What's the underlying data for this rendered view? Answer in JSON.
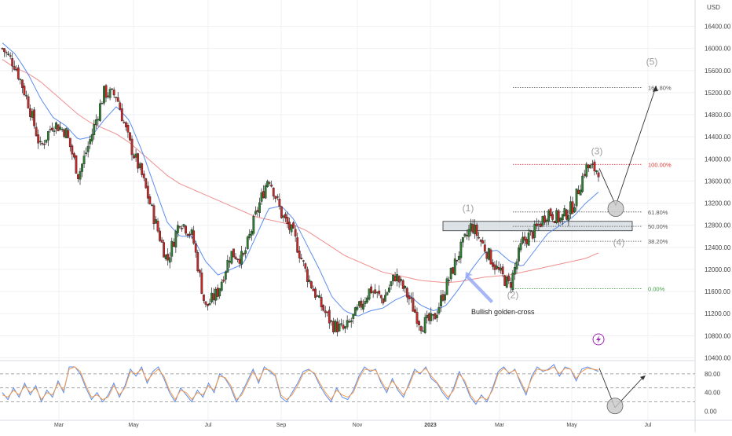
{
  "chart_data": [
    {
      "type": "candlestick",
      "currency": "USD",
      "y_ticks": [
        16400,
        16000,
        15600,
        15200,
        14800,
        14400,
        14000,
        13600,
        13200,
        12800,
        12400,
        12000,
        11600,
        11200,
        10800,
        10400
      ],
      "ylim": [
        10250,
        16550
      ],
      "x_ticks": [
        "Mar",
        "May",
        "Jul",
        "Sep",
        "Nov",
        "2023",
        "Mar",
        "May",
        "Jul"
      ],
      "grid": true,
      "colors": {
        "up": "#2e7d32",
        "down": "#c62828",
        "ma_fast": "#5b8def",
        "ma_slow": "#ef8f8f",
        "arrow": "#333333",
        "fib_top": "#e53935",
        "fib_zero": "#43a047",
        "label_gray": "#9e9e9e",
        "annotation": "#90a4f5",
        "zone": "#cfd6dc"
      },
      "close_trace": [
        [
          "Jan",
          16000
        ],
        [
          "Jan",
          15700
        ],
        [
          "Feb",
          15050
        ],
        [
          "Feb",
          14200
        ],
        [
          "Feb",
          14650
        ],
        [
          "Mar",
          14500
        ],
        [
          "Mar",
          13700
        ],
        [
          "Mar",
          14400
        ],
        [
          "Apr",
          15200
        ],
        [
          "Apr",
          15150
        ],
        [
          "Apr",
          14300
        ],
        [
          "May",
          13700
        ],
        [
          "May",
          12900
        ],
        [
          "May",
          12150
        ],
        [
          "Jun",
          12900
        ],
        [
          "Jun",
          12600
        ],
        [
          "Jun",
          11300
        ],
        [
          "Jul",
          11600
        ],
        [
          "Jul",
          12300
        ],
        [
          "Jul",
          12200
        ],
        [
          "Aug",
          13000
        ],
        [
          "Aug",
          13700
        ],
        [
          "Aug",
          13000
        ],
        [
          "Sep",
          12600
        ],
        [
          "Sep",
          11900
        ],
        [
          "Oct",
          11400
        ],
        [
          "Oct",
          11000
        ],
        [
          "Oct",
          10900
        ],
        [
          "Nov",
          11250
        ],
        [
          "Nov",
          11650
        ],
        [
          "Nov",
          11450
        ],
        [
          "Dec",
          11900
        ],
        [
          "Dec",
          11500
        ],
        [
          "Dec",
          11000
        ],
        [
          "Jan",
          11100
        ],
        [
          "Jan",
          11700
        ],
        [
          "Jan",
          12300
        ],
        [
          "Feb",
          12800
        ],
        [
          "Feb",
          12400
        ],
        [
          "Feb",
          12000
        ],
        [
          "Mar",
          11700
        ],
        [
          "Mar",
          12500
        ],
        [
          "Apr",
          12700
        ],
        [
          "Apr",
          13050
        ],
        [
          "Apr",
          12900
        ],
        [
          "May",
          13150
        ],
        [
          "May",
          13850
        ],
        [
          "May",
          13800
        ]
      ],
      "ma_fast_trace": [
        16100,
        15900,
        15550,
        15100,
        14750,
        14600,
        14350,
        14400,
        14700,
        14950,
        14700,
        14150,
        13500,
        12850,
        12600,
        12600,
        12150,
        11900,
        12000,
        12100,
        12600,
        13100,
        13150,
        12900,
        12450,
        12000,
        11500,
        11250,
        11150,
        11250,
        11300,
        11450,
        11550,
        11350,
        11250,
        11350,
        11650,
        12000,
        12300,
        12350,
        12150,
        12050,
        12350,
        12650,
        12800,
        12950,
        13200,
        13400
      ],
      "ma_slow_trace": [
        15800,
        15650,
        15550,
        15400,
        15200,
        15000,
        14800,
        14650,
        14550,
        14450,
        14300,
        14100,
        13900,
        13700,
        13550,
        13450,
        13350,
        13250,
        13150,
        13050,
        12950,
        12900,
        12850,
        12800,
        12700,
        12550,
        12400,
        12250,
        12150,
        12050,
        11950,
        11900,
        11850,
        11800,
        11780,
        11760,
        11780,
        11820,
        11860,
        11880,
        11900,
        11950,
        12000,
        12050,
        12100,
        12150,
        12200,
        12300
      ],
      "fib_levels": [
        {
          "label": "161.80%",
          "value": 15290
        },
        {
          "label": "100.00%",
          "value": 13900
        },
        {
          "label": "61.80%",
          "value": 13040
        },
        {
          "label": "50.00%",
          "value": 12780
        },
        {
          "label": "38.20%",
          "value": 12510
        },
        {
          "label": "0.00%",
          "value": 11650
        }
      ],
      "wave_labels": [
        {
          "label": "(1)",
          "value": 13050
        },
        {
          "label": "(2)",
          "value": 11480
        },
        {
          "label": "(3)",
          "value": 14080
        },
        {
          "label": "(4)",
          "value": 12430
        },
        {
          "label": "(5)",
          "value": 15700
        }
      ],
      "support_zone": [
        12700,
        12870
      ],
      "projection_path": [
        13830,
        13100,
        15300
      ],
      "annotation": "Bullish golden-cross"
    },
    {
      "type": "line",
      "indicator_badge_icon": "lightning-icon",
      "y_ticks": [
        80.0,
        40.0,
        0.0
      ],
      "ylim": [
        -6,
        120
      ],
      "bands": [
        80,
        50,
        20
      ],
      "series": [
        {
          "color": "#5b8def",
          "values": [
            40,
            25,
            50,
            30,
            60,
            35,
            55,
            20,
            45,
            30,
            65,
            40,
            95,
            95,
            80,
            50,
            25,
            40,
            20,
            35,
            60,
            30,
            55,
            90,
            75,
            95,
            60,
            85,
            95,
            70,
            40,
            20,
            50,
            35,
            20,
            45,
            30,
            60,
            40,
            80,
            70,
            50,
            20,
            40,
            65,
            90,
            60,
            95,
            85,
            75,
            30,
            20,
            40,
            60,
            85,
            90,
            80,
            55,
            35,
            20,
            50,
            30,
            25,
            45,
            75,
            95,
            85,
            90,
            60,
            40,
            70,
            45,
            30,
            60,
            90,
            80,
            95,
            70,
            60,
            40,
            25,
            50,
            85,
            60,
            30,
            15,
            35,
            20,
            50,
            85,
            95,
            80,
            90,
            60,
            35,
            75,
            95,
            85,
            90,
            100,
            75,
            95,
            90,
            65,
            90,
            95,
            90,
            85
          ]
        },
        {
          "color": "#f39c50",
          "values": [
            35,
            30,
            45,
            35,
            55,
            40,
            50,
            25,
            40,
            35,
            60,
            45,
            90,
            95,
            85,
            55,
            30,
            35,
            25,
            30,
            55,
            35,
            50,
            85,
            80,
            90,
            65,
            80,
            90,
            75,
            45,
            25,
            45,
            40,
            25,
            40,
            35,
            55,
            45,
            75,
            72,
            55,
            25,
            35,
            60,
            85,
            65,
            90,
            88,
            78,
            35,
            25,
            35,
            55,
            80,
            88,
            82,
            60,
            40,
            25,
            45,
            35,
            30,
            40,
            70,
            90,
            88,
            88,
            65,
            45,
            65,
            50,
            35,
            55,
            85,
            82,
            92,
            75,
            62,
            45,
            30,
            45,
            80,
            65,
            35,
            20,
            30,
            25,
            45,
            80,
            92,
            82,
            88,
            65,
            40,
            70,
            90,
            88,
            88,
            95,
            80,
            92,
            90,
            70,
            85,
            92,
            90,
            88
          ]
        }
      ],
      "projection_path": [
        92,
        8,
        75
      ]
    }
  ]
}
